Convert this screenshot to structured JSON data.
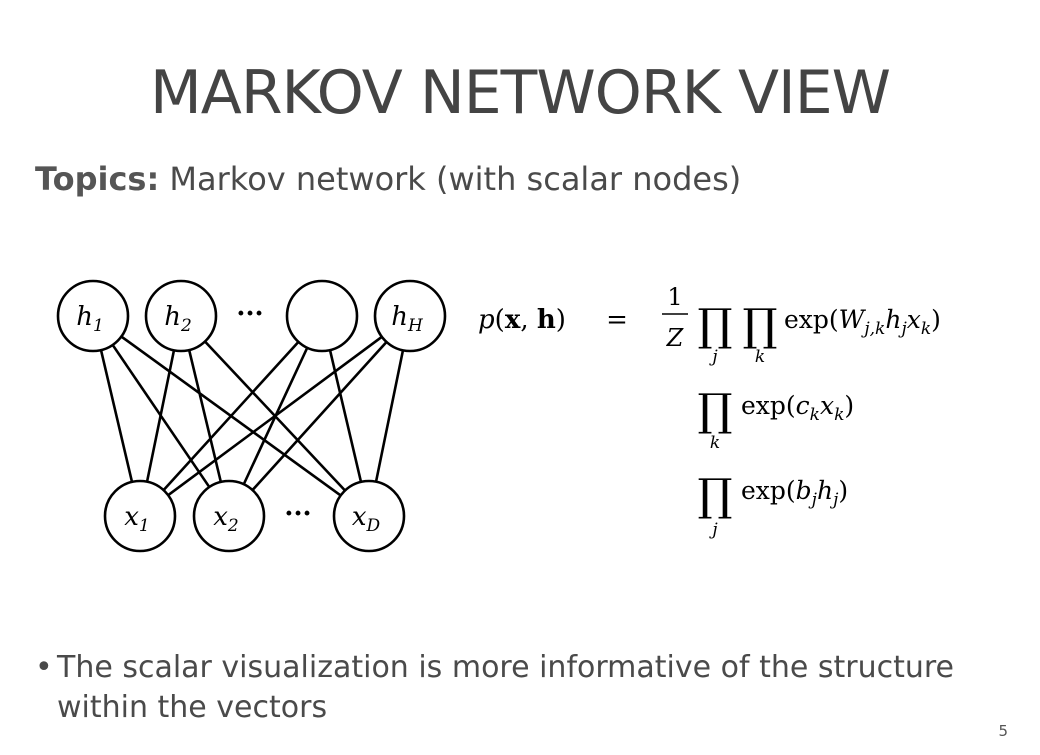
{
  "slide": {
    "title": "MARKOV NETWORK VIEW",
    "topics_label": "Topics:",
    "topics_text": "Markov network (with scalar nodes)",
    "bullet": "The scalar visualization is more informative of the structure within the vectors",
    "page_number": "5"
  },
  "diagram": {
    "hidden_nodes": [
      {
        "id": "h1",
        "var": "h",
        "sub": "1"
      },
      {
        "id": "h2",
        "var": "h",
        "sub": "2"
      },
      {
        "id": "h3",
        "var": "",
        "sub": ""
      },
      {
        "id": "hH",
        "var": "h",
        "sub": "H"
      }
    ],
    "visible_nodes": [
      {
        "id": "x1",
        "var": "x",
        "sub": "1"
      },
      {
        "id": "x2",
        "var": "x",
        "sub": "2"
      },
      {
        "id": "xD",
        "var": "x",
        "sub": "D"
      }
    ],
    "ellipsis": "···",
    "edges": [
      [
        "h1",
        "x1"
      ],
      [
        "h1",
        "x2"
      ],
      [
        "h1",
        "xD"
      ],
      [
        "h2",
        "x1"
      ],
      [
        "h2",
        "x2"
      ],
      [
        "h2",
        "xD"
      ],
      [
        "h3",
        "x1"
      ],
      [
        "h3",
        "x2"
      ],
      [
        "h3",
        "xD"
      ],
      [
        "hH",
        "x1"
      ],
      [
        "hH",
        "x2"
      ],
      [
        "hH",
        "xD"
      ]
    ]
  },
  "equation": {
    "lhs": "p(x, h)",
    "equals": "=",
    "frac_num": "1",
    "frac_den": "Z",
    "prod_symbol": "∏",
    "line1_sub_j": "j",
    "line1_sub_k": "k",
    "line1_term": "exp(W_{j,k} h_j x_k)",
    "line2_sub": "k",
    "line2_term": "exp(c_k x_k)",
    "line3_sub": "j",
    "line3_term": "exp(b_j h_j)"
  }
}
